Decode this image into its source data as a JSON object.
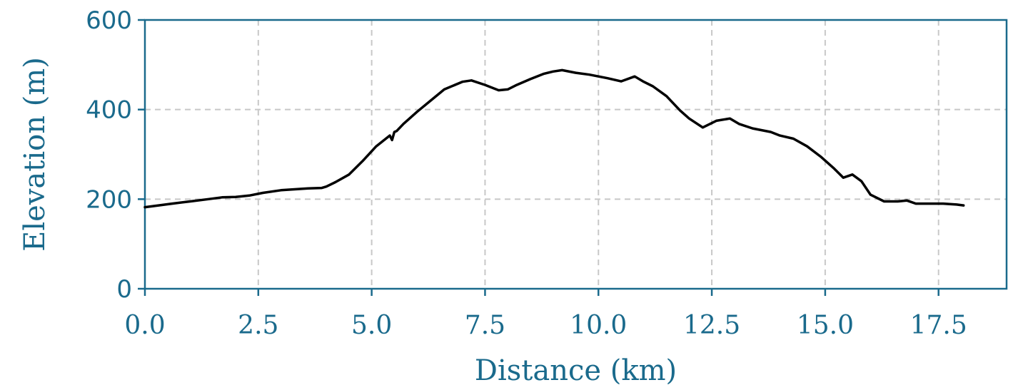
{
  "chart_data": {
    "type": "line",
    "title": "",
    "xlabel": "Distance (km)",
    "ylabel": "Elevation (m)",
    "xlim": [
      0,
      19
    ],
    "ylim": [
      0,
      600
    ],
    "xticks": [
      "0.0",
      "2.5",
      "5.0",
      "7.5",
      "10.0",
      "12.5",
      "15.0",
      "17.5"
    ],
    "yticks": [
      "0",
      "200",
      "400",
      "600"
    ],
    "grid": true,
    "legend": "none",
    "colors": {
      "axis": "#1a6a8c",
      "line": "#000000",
      "grid": "#c8c8c8"
    },
    "series": [
      {
        "x": [
          0.0,
          0.3,
          0.6,
          1.0,
          1.4,
          1.7,
          2.0,
          2.3,
          2.6,
          3.0,
          3.3,
          3.6,
          3.9,
          4.0,
          4.2,
          4.5,
          4.8,
          5.1,
          5.4,
          5.45,
          5.5,
          5.55,
          5.7,
          6.0,
          6.3,
          6.6,
          7.0,
          7.2,
          7.5,
          7.8,
          8.0,
          8.2,
          8.5,
          8.8,
          9.0,
          9.2,
          9.5,
          9.8,
          10.2,
          10.5,
          10.8,
          11.0,
          11.2,
          11.5,
          11.8,
          12.0,
          12.3,
          12.6,
          12.9,
          13.1,
          13.4,
          13.8,
          14.0,
          14.3,
          14.6,
          14.9,
          15.2,
          15.4,
          15.6,
          15.8,
          16.0,
          16.3,
          16.6,
          16.8,
          17.0,
          17.3,
          17.6,
          17.9,
          18.05
        ],
        "y": [
          182,
          186,
          190,
          195,
          200,
          204,
          205,
          208,
          214,
          220,
          222,
          224,
          225,
          228,
          238,
          255,
          285,
          318,
          342,
          332,
          350,
          352,
          368,
          395,
          420,
          445,
          462,
          465,
          455,
          443,
          445,
          455,
          468,
          480,
          485,
          488,
          482,
          478,
          470,
          463,
          474,
          462,
          452,
          430,
          398,
          380,
          360,
          375,
          380,
          368,
          358,
          350,
          342,
          335,
          318,
          295,
          268,
          248,
          255,
          240,
          210,
          195,
          195,
          197,
          190,
          190,
          190,
          188,
          186
        ]
      }
    ]
  }
}
